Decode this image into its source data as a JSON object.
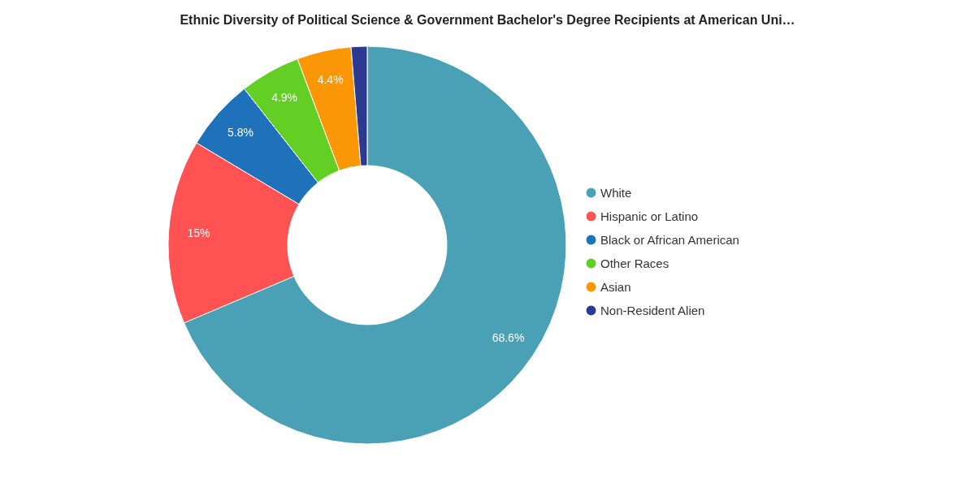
{
  "chart_data": {
    "type": "donut",
    "title": "Ethnic Diversity of Political Science & Government Bachelor's Degree Recipients at American Uni…",
    "categories": [
      "White",
      "Hispanic or Latino",
      "Black or African American",
      "Other Races",
      "Asian",
      "Non-Resident Alien"
    ],
    "values": [
      68.6,
      15,
      5.8,
      4.9,
      4.4,
      1.3
    ],
    "value_labels": [
      "68.6%",
      "15%",
      "5.8%",
      "4.9%",
      "4.4%",
      null
    ],
    "colors": [
      "#4aa0b4",
      "#ff5353",
      "#1f72ba",
      "#63cf25",
      "#fb9706",
      "#2b3990"
    ],
    "legend": "right"
  }
}
